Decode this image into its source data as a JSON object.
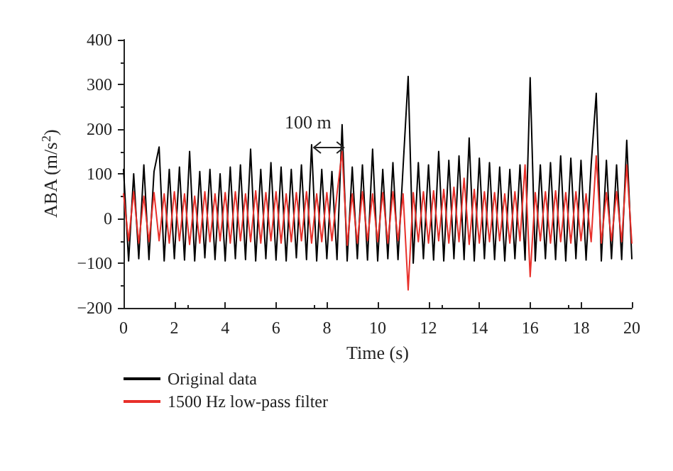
{
  "chart_data": {
    "type": "line",
    "xlabel": "Time (s)",
    "ylabel": "ABA (m/s$^{2}$)",
    "annotations": [
      "100 m"
    ],
    "x": [
      0,
      0.2,
      0.4,
      0.6,
      0.8,
      1,
      1.2,
      1.4,
      1.6,
      1.8,
      2,
      2.2,
      2.4,
      2.6,
      2.8,
      3,
      3.2,
      3.4,
      3.6,
      3.8,
      4,
      4.2,
      4.4,
      4.6,
      4.8,
      5,
      5.2,
      5.4,
      5.6,
      5.8,
      6,
      6.2,
      6.4,
      6.6,
      6.8,
      7,
      7.2,
      7.4,
      7.6,
      7.8,
      8,
      8.2,
      8.4,
      8.6,
      8.8,
      9,
      9.2,
      9.4,
      9.6,
      9.8,
      10,
      10.2,
      10.4,
      10.6,
      10.8,
      11,
      11.2,
      11.4,
      11.6,
      11.8,
      12,
      12.2,
      12.4,
      12.6,
      12.8,
      13,
      13.2,
      13.4,
      13.6,
      13.8,
      14,
      14.2,
      14.4,
      14.6,
      14.8,
      15,
      15.2,
      15.4,
      15.6,
      15.8,
      16,
      16.2,
      16.4,
      16.6,
      16.8,
      17,
      17.2,
      17.4,
      17.6,
      17.8,
      18,
      18.2,
      18.4,
      18.6,
      18.8,
      19,
      19.2,
      19.4,
      19.6,
      19.8,
      20
    ],
    "series": [
      {
        "name": "Original data",
        "color": "#000000",
        "values": [
          110,
          -95,
          100,
          -90,
          120,
          -92,
          105,
          160,
          -95,
          110,
          -90,
          115,
          -93,
          150,
          -95,
          105,
          -88,
          110,
          -92,
          100,
          -95,
          115,
          -90,
          120,
          -92,
          155,
          -95,
          110,
          -90,
          125,
          -93,
          115,
          -95,
          110,
          -88,
          120,
          -92,
          165,
          -95,
          110,
          -90,
          105,
          -92,
          210,
          -95,
          115,
          -90,
          120,
          -93,
          155,
          -95,
          110,
          -90,
          125,
          -92,
          115,
          318,
          -100,
          125,
          -90,
          120,
          -93,
          150,
          -95,
          130,
          -90,
          140,
          -92,
          180,
          -95,
          135,
          -90,
          125,
          -92,
          115,
          -95,
          110,
          -90,
          120,
          -93,
          315,
          -95,
          120,
          -90,
          125,
          -92,
          140,
          -95,
          135,
          -90,
          130,
          -93,
          120,
          280,
          -95,
          130,
          -90,
          120,
          -92,
          175,
          -90
        ]
      },
      {
        "name": "1500 Hz low-pass filter",
        "color": "#e8302a",
        "values": [
          55,
          -50,
          60,
          -55,
          50,
          -52,
          58,
          -50,
          55,
          -55,
          60,
          -50,
          55,
          -58,
          50,
          -55,
          60,
          -52,
          55,
          -50,
          58,
          -55,
          60,
          -50,
          55,
          -52,
          62,
          -55,
          58,
          -50,
          60,
          -55,
          55,
          -52,
          58,
          -50,
          60,
          -55,
          55,
          -52,
          58,
          -50,
          55,
          150,
          -60,
          55,
          -55,
          60,
          -50,
          55,
          -52,
          58,
          -55,
          60,
          -50,
          55,
          -160,
          58,
          -52,
          60,
          -55,
          62,
          -50,
          65,
          -55,
          70,
          -52,
          90,
          -58,
          65,
          -55,
          60,
          -52,
          58,
          -50,
          55,
          -55,
          60,
          -50,
          120,
          -130,
          58,
          -50,
          60,
          -55,
          62,
          -52,
          58,
          -55,
          60,
          -50,
          55,
          -52,
          140,
          -55,
          58,
          -50,
          60,
          -52,
          120,
          -55
        ]
      }
    ],
    "xlim": [
      0,
      20
    ],
    "xticks": [
      0,
      2,
      4,
      6,
      8,
      10,
      12,
      14,
      16,
      18,
      20
    ],
    "ylim": [
      -200,
      400
    ],
    "yticks": [
      -200,
      -100,
      0,
      100,
      200,
      300,
      400
    ],
    "grid": false,
    "legend": "bottom left",
    "marker": "none",
    "line_style": "solid"
  }
}
